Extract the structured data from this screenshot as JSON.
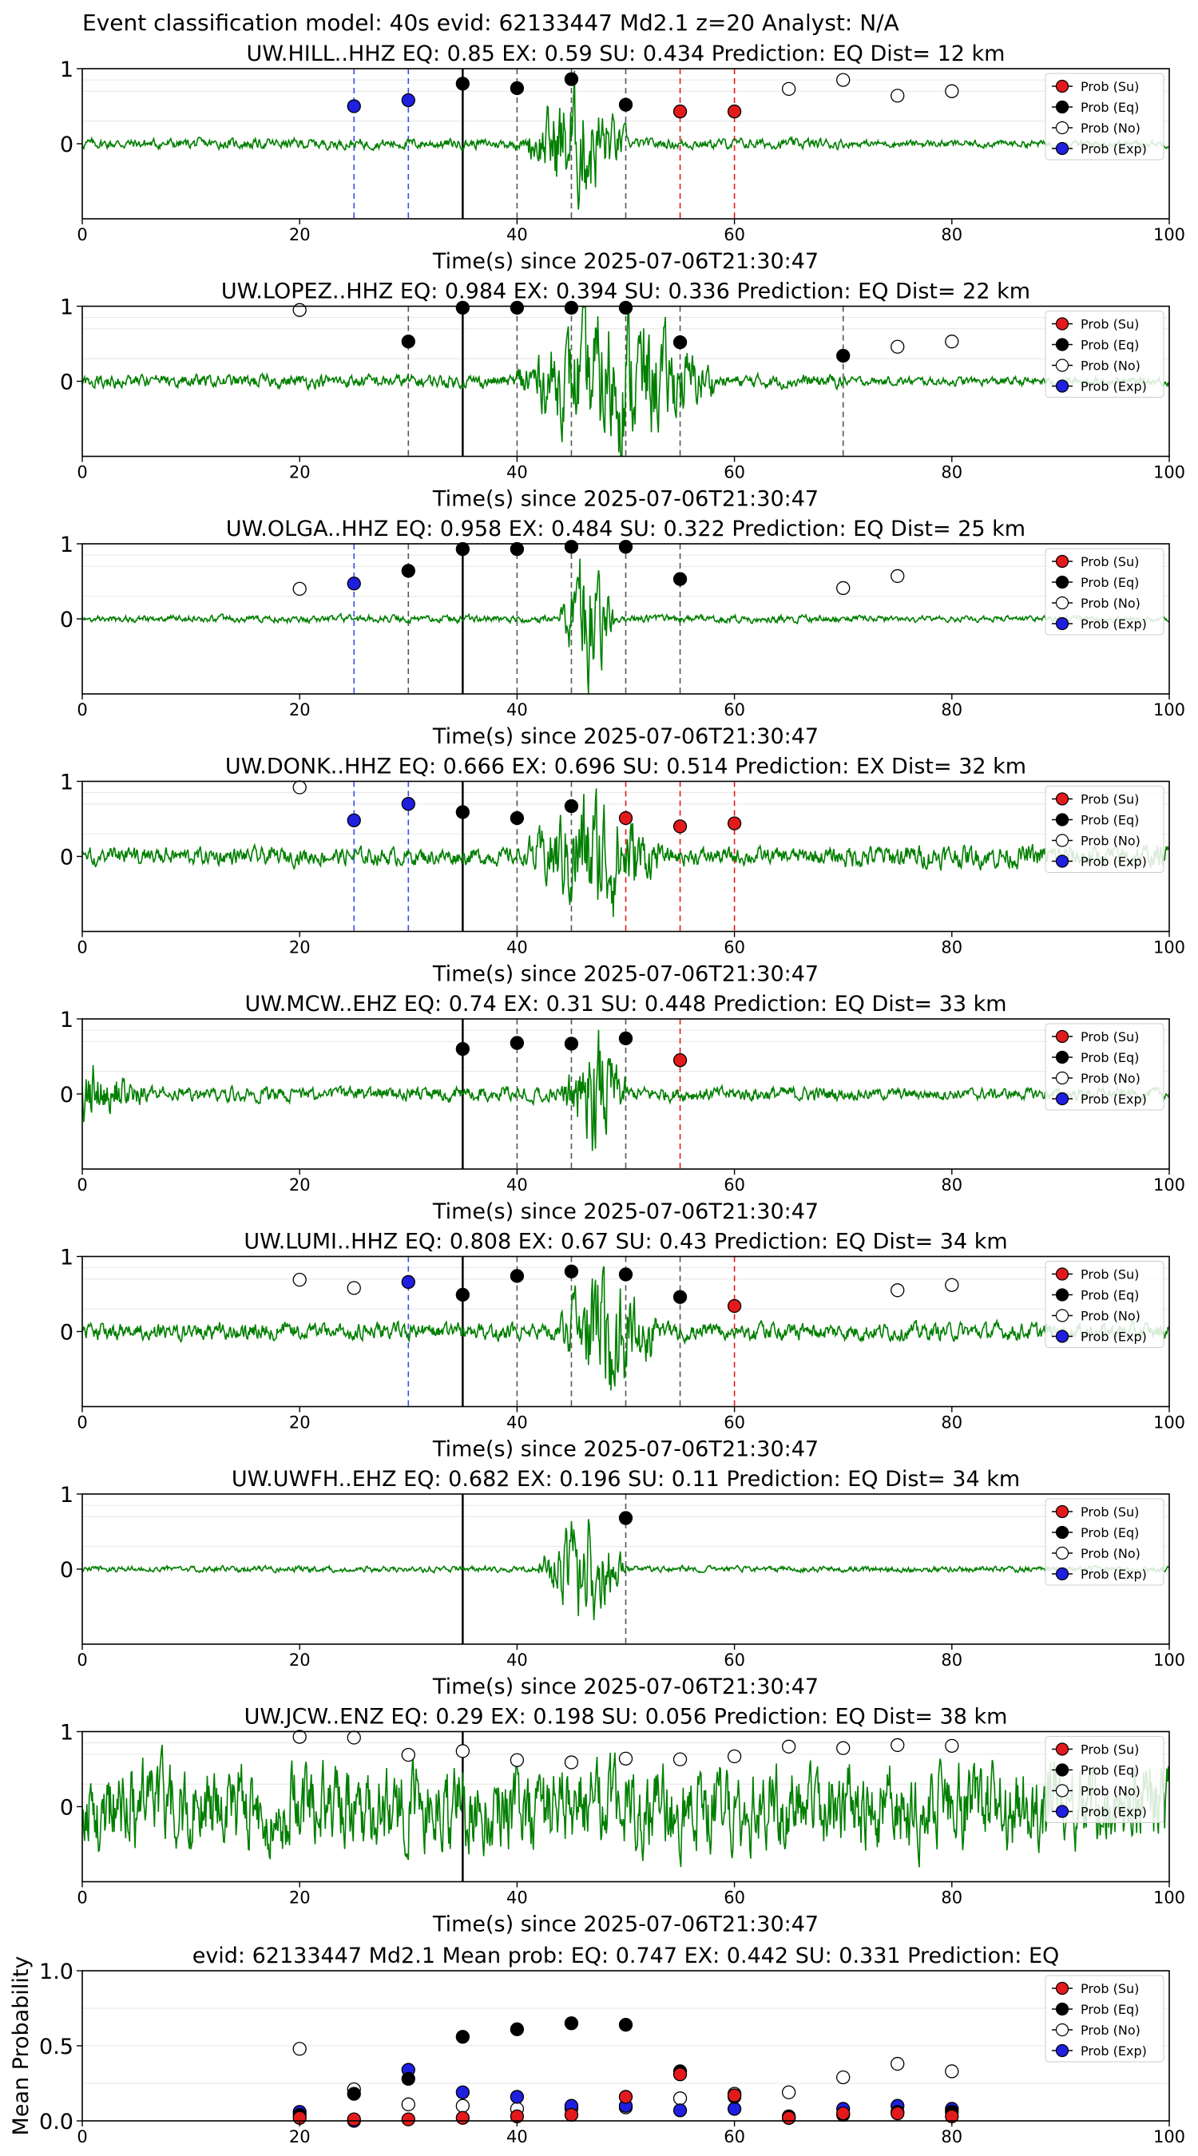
{
  "figure_title": "Event classification model: 40s evid: 62133447 Md2.1 z=20 Analyst: N/A",
  "legend_entries": [
    "Prob (Su)",
    "Prob (Eq)",
    "Prob (No)",
    "Prob (Exp)"
  ],
  "colors": {
    "su": "#e31a1c",
    "eq": "#000000",
    "no": "#ffffff",
    "exp": "#1f1fe0",
    "wave": "#007f00"
  },
  "chart_data": [
    {
      "type": "scatter",
      "title": "UW.HILL..HHZ   EQ: 0.85  EX: 0.59  SU: 0.434   Prediction: EQ    Dist= 12 km",
      "xlabel": "Time(s) since 2025-07-06T21:30:47",
      "xlim": [
        0,
        100
      ],
      "ylim": [
        -1,
        1
      ],
      "xticks": [
        "0",
        "20",
        "40",
        "60",
        "80",
        "100"
      ],
      "yticks": [
        "1",
        "0"
      ],
      "onset": 35,
      "signal_start": 41,
      "signal_end": 50,
      "signal_amp": 0.8,
      "noise_amp": 0.07,
      "tail_amp": 0.05,
      "series": [
        {
          "key": "exp",
          "x": [
            25,
            30
          ],
          "y": [
            0.5,
            0.58
          ]
        },
        {
          "key": "eq",
          "x": [
            35,
            40,
            45,
            50
          ],
          "y": [
            0.8,
            0.74,
            0.86,
            0.52
          ]
        },
        {
          "key": "su",
          "x": [
            55,
            60
          ],
          "y": [
            0.43,
            0.43
          ]
        },
        {
          "key": "no",
          "x": [
            65,
            70,
            75,
            80
          ],
          "y": [
            0.73,
            0.85,
            0.64,
            0.7
          ]
        }
      ]
    },
    {
      "type": "scatter",
      "title": "UW.LOPEZ..HHZ   EQ: 0.984  EX: 0.394  SU: 0.336   Prediction: EQ    Dist= 22 km",
      "xlabel": "Time(s) since 2025-07-06T21:30:47",
      "xlim": [
        0,
        100
      ],
      "ylim": [
        -1,
        1
      ],
      "xticks": [
        "0",
        "20",
        "40",
        "60",
        "80",
        "100"
      ],
      "yticks": [
        "1",
        "0"
      ],
      "onset": 35,
      "signal_start": 40,
      "signal_end": 58,
      "signal_amp": 0.9,
      "noise_amp": 0.09,
      "tail_amp": 0.06,
      "series": [
        {
          "key": "exp",
          "x": [],
          "y": []
        },
        {
          "key": "eq",
          "x": [
            30,
            35,
            40,
            45,
            50,
            55,
            70
          ],
          "y": [
            0.53,
            0.98,
            0.98,
            0.98,
            0.98,
            0.52,
            0.34
          ]
        },
        {
          "key": "su",
          "x": [],
          "y": []
        },
        {
          "key": "no",
          "x": [
            20,
            75,
            80
          ],
          "y": [
            0.95,
            0.46,
            0.53
          ]
        }
      ]
    },
    {
      "type": "scatter",
      "title": "UW.OLGA..HHZ   EQ: 0.958  EX: 0.484  SU: 0.322   Prediction: EQ    Dist= 25 km",
      "xlabel": "Time(s) since 2025-07-06T21:30:47",
      "xlim": [
        0,
        100
      ],
      "ylim": [
        -1,
        1
      ],
      "xticks": [
        "0",
        "20",
        "40",
        "60",
        "80",
        "100"
      ],
      "yticks": [
        "1",
        "0"
      ],
      "onset": 35,
      "signal_start": 44,
      "signal_end": 49,
      "signal_amp": 0.9,
      "noise_amp": 0.05,
      "tail_amp": 0.04,
      "series": [
        {
          "key": "exp",
          "x": [
            25
          ],
          "y": [
            0.47
          ]
        },
        {
          "key": "eq",
          "x": [
            30,
            35,
            40,
            45,
            50,
            55
          ],
          "y": [
            0.64,
            0.93,
            0.93,
            0.96,
            0.96,
            0.53
          ]
        },
        {
          "key": "su",
          "x": [],
          "y": []
        },
        {
          "key": "no",
          "x": [
            20,
            70,
            75
          ],
          "y": [
            0.4,
            0.41,
            0.57
          ]
        }
      ]
    },
    {
      "type": "scatter",
      "title": "UW.DONK..HHZ   EQ: 0.666  EX: 0.696  SU: 0.514   Prediction: EX    Dist= 32 km",
      "xlabel": "Time(s) since 2025-07-06T21:30:47",
      "xlim": [
        0,
        100
      ],
      "ylim": [
        -1,
        1
      ],
      "xticks": [
        "0",
        "20",
        "40",
        "60",
        "80",
        "100"
      ],
      "yticks": [
        "1",
        "0"
      ],
      "onset": 35,
      "signal_start": 41,
      "signal_end": 53,
      "signal_amp": 0.8,
      "noise_amp": 0.12,
      "tail_amp": 0.16,
      "series": [
        {
          "key": "exp",
          "x": [
            25,
            30
          ],
          "y": [
            0.48,
            0.7
          ]
        },
        {
          "key": "eq",
          "x": [
            35,
            40,
            45
          ],
          "y": [
            0.59,
            0.51,
            0.67
          ]
        },
        {
          "key": "su",
          "x": [
            50,
            55,
            60
          ],
          "y": [
            0.51,
            0.4,
            0.44
          ]
        },
        {
          "key": "no",
          "x": [
            20
          ],
          "y": [
            0.92
          ]
        }
      ]
    },
    {
      "type": "scatter",
      "title": "UW.MCW..EHZ   EQ: 0.74  EX: 0.31  SU: 0.448   Prediction: EQ    Dist= 33 km",
      "xlabel": "Time(s) since 2025-07-06T21:30:47",
      "xlim": [
        0,
        100
      ],
      "ylim": [
        -1,
        1
      ],
      "xticks": [
        "0",
        "20",
        "40",
        "60",
        "80",
        "100"
      ],
      "yticks": [
        "1",
        "0"
      ],
      "onset": 35,
      "signal_start": 44,
      "signal_end": 50,
      "signal_amp": 0.8,
      "noise_amp": 0.1,
      "tail_amp": 0.08,
      "head_amp": 0.4,
      "series": [
        {
          "key": "exp",
          "x": [],
          "y": []
        },
        {
          "key": "eq",
          "x": [
            35,
            40,
            45,
            50
          ],
          "y": [
            0.6,
            0.68,
            0.67,
            0.74
          ]
        },
        {
          "key": "su",
          "x": [
            55
          ],
          "y": [
            0.45
          ]
        },
        {
          "key": "no",
          "x": [],
          "y": []
        }
      ]
    },
    {
      "type": "scatter",
      "title": "UW.LUMI..HHZ   EQ: 0.808  EX: 0.67  SU: 0.43   Prediction: EQ    Dist= 34 km",
      "xlabel": "Time(s) since 2025-07-06T21:30:47",
      "xlim": [
        0,
        100
      ],
      "ylim": [
        -1,
        1
      ],
      "xticks": [
        "0",
        "20",
        "40",
        "60",
        "80",
        "100"
      ],
      "yticks": [
        "1",
        "0"
      ],
      "onset": 35,
      "signal_start": 44,
      "signal_end": 53,
      "signal_amp": 0.85,
      "noise_amp": 0.12,
      "tail_amp": 0.12,
      "series": [
        {
          "key": "exp",
          "x": [
            30
          ],
          "y": [
            0.66
          ]
        },
        {
          "key": "eq",
          "x": [
            35,
            40,
            45,
            50,
            55
          ],
          "y": [
            0.49,
            0.74,
            0.8,
            0.76,
            0.46
          ]
        },
        {
          "key": "su",
          "x": [
            60
          ],
          "y": [
            0.34
          ]
        },
        {
          "key": "no",
          "x": [
            20,
            25,
            75,
            80
          ],
          "y": [
            0.69,
            0.58,
            0.55,
            0.62
          ]
        }
      ]
    },
    {
      "type": "scatter",
      "title": "UW.UWFH..EHZ   EQ: 0.682  EX: 0.196  SU: 0.11   Prediction: EQ    Dist= 34 km",
      "xlabel": "Time(s) since 2025-07-06T21:30:47",
      "xlim": [
        0,
        100
      ],
      "ylim": [
        -1,
        1
      ],
      "xticks": [
        "0",
        "20",
        "40",
        "60",
        "80",
        "100"
      ],
      "yticks": [
        "1",
        "0"
      ],
      "onset": 35,
      "signal_start": 42,
      "signal_end": 50,
      "signal_amp": 0.7,
      "noise_amp": 0.04,
      "tail_amp": 0.04,
      "series": [
        {
          "key": "exp",
          "x": [],
          "y": []
        },
        {
          "key": "eq",
          "x": [
            50
          ],
          "y": [
            0.68
          ]
        },
        {
          "key": "su",
          "x": [],
          "y": []
        },
        {
          "key": "no",
          "x": [],
          "y": []
        }
      ]
    },
    {
      "type": "scatter",
      "title": "UW.JCW..ENZ   EQ: 0.29  EX: 0.198  SU: 0.056   Prediction: EQ    Dist= 38 km",
      "xlabel": "Time(s) since 2025-07-06T21:30:47",
      "xlim": [
        0,
        100
      ],
      "ylim": [
        -1,
        1
      ],
      "xticks": [
        "0",
        "20",
        "40",
        "60",
        "80",
        "100"
      ],
      "yticks": [
        "1",
        "0"
      ],
      "onset": 35,
      "signal_start": 0,
      "signal_end": 0,
      "signal_amp": 0,
      "noise_amp": 0.6,
      "tail_amp": 0.6,
      "series": [
        {
          "key": "exp",
          "x": [],
          "y": []
        },
        {
          "key": "eq",
          "x": [],
          "y": []
        },
        {
          "key": "su",
          "x": [],
          "y": []
        },
        {
          "key": "no",
          "x": [
            20,
            25,
            30,
            35,
            40,
            45,
            50,
            55,
            60,
            65,
            70,
            75,
            80
          ],
          "y": [
            0.93,
            0.92,
            0.69,
            0.74,
            0.62,
            0.59,
            0.64,
            0.63,
            0.67,
            0.8,
            0.78,
            0.82,
            0.81
          ]
        }
      ]
    },
    {
      "type": "scatter",
      "title": "evid: 62133447  Md2.1   Mean prob:    EQ: 0.747  EX: 0.442  SU: 0.331   Prediction: EQ",
      "xlabel": "",
      "ylabel": "Mean Probability",
      "xlim": [
        0,
        100
      ],
      "ylim": [
        0,
        1
      ],
      "xticks": [
        "0",
        "20",
        "40",
        "60",
        "80",
        "100"
      ],
      "yticks": [
        "1.0",
        "0.5",
        "0.0"
      ],
      "series": [
        {
          "key": "su",
          "x": [
            20,
            25,
            30,
            35,
            40,
            45,
            50,
            55,
            60,
            65,
            70,
            75,
            80
          ],
          "y": [
            0.02,
            0.01,
            0.01,
            0.02,
            0.03,
            0.04,
            0.16,
            0.31,
            0.17,
            0.02,
            0.05,
            0.05,
            0.03
          ]
        },
        {
          "key": "eq",
          "x": [
            20,
            25,
            30,
            35,
            40,
            45,
            50,
            55,
            60,
            65,
            70,
            75,
            80
          ],
          "y": [
            0.04,
            0.18,
            0.28,
            0.56,
            0.61,
            0.65,
            0.64,
            0.33,
            0.16,
            0.03,
            0.04,
            0.06,
            0.06
          ]
        },
        {
          "key": "no",
          "x": [
            20,
            25,
            30,
            35,
            40,
            45,
            50,
            55,
            60,
            65,
            70,
            75,
            80
          ],
          "y": [
            0.48,
            0.21,
            0.11,
            0.1,
            0.08,
            0.08,
            0.09,
            0.15,
            0.18,
            0.19,
            0.29,
            0.38,
            0.33
          ]
        },
        {
          "key": "exp",
          "x": [
            20,
            25,
            30,
            35,
            40,
            45,
            50,
            55,
            60,
            65,
            70,
            75,
            80
          ],
          "y": [
            0.06,
            0.0,
            0.34,
            0.19,
            0.16,
            0.1,
            0.1,
            0.07,
            0.08,
            0.02,
            0.08,
            0.1,
            0.08
          ]
        }
      ]
    }
  ]
}
